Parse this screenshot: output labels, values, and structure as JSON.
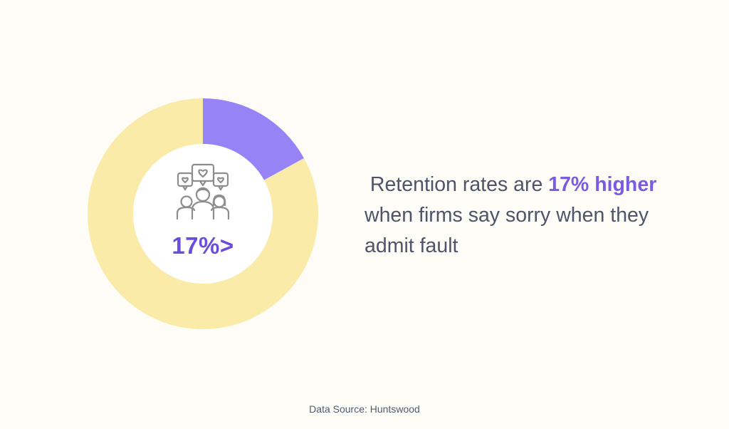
{
  "chart_data": {
    "type": "pie",
    "style": "donut",
    "categories": [
      "",
      ""
    ],
    "values": [
      17,
      83
    ],
    "colors": [
      "#9684f7",
      "#fbeba9"
    ],
    "center_label": "17%>",
    "center_icon": "people-hearts-icon",
    "title": "",
    "legend": "none"
  },
  "headline": {
    "lead": "Retention rates are ",
    "highlight": "17% higher",
    "line2": "when firms say sorry when they",
    "line3": "admit fault"
  },
  "footer": {
    "source": "Data Source: Huntswood"
  },
  "colors": {
    "background": "#fdfcf7",
    "accent": "#7c5be0",
    "text": "#505469"
  }
}
